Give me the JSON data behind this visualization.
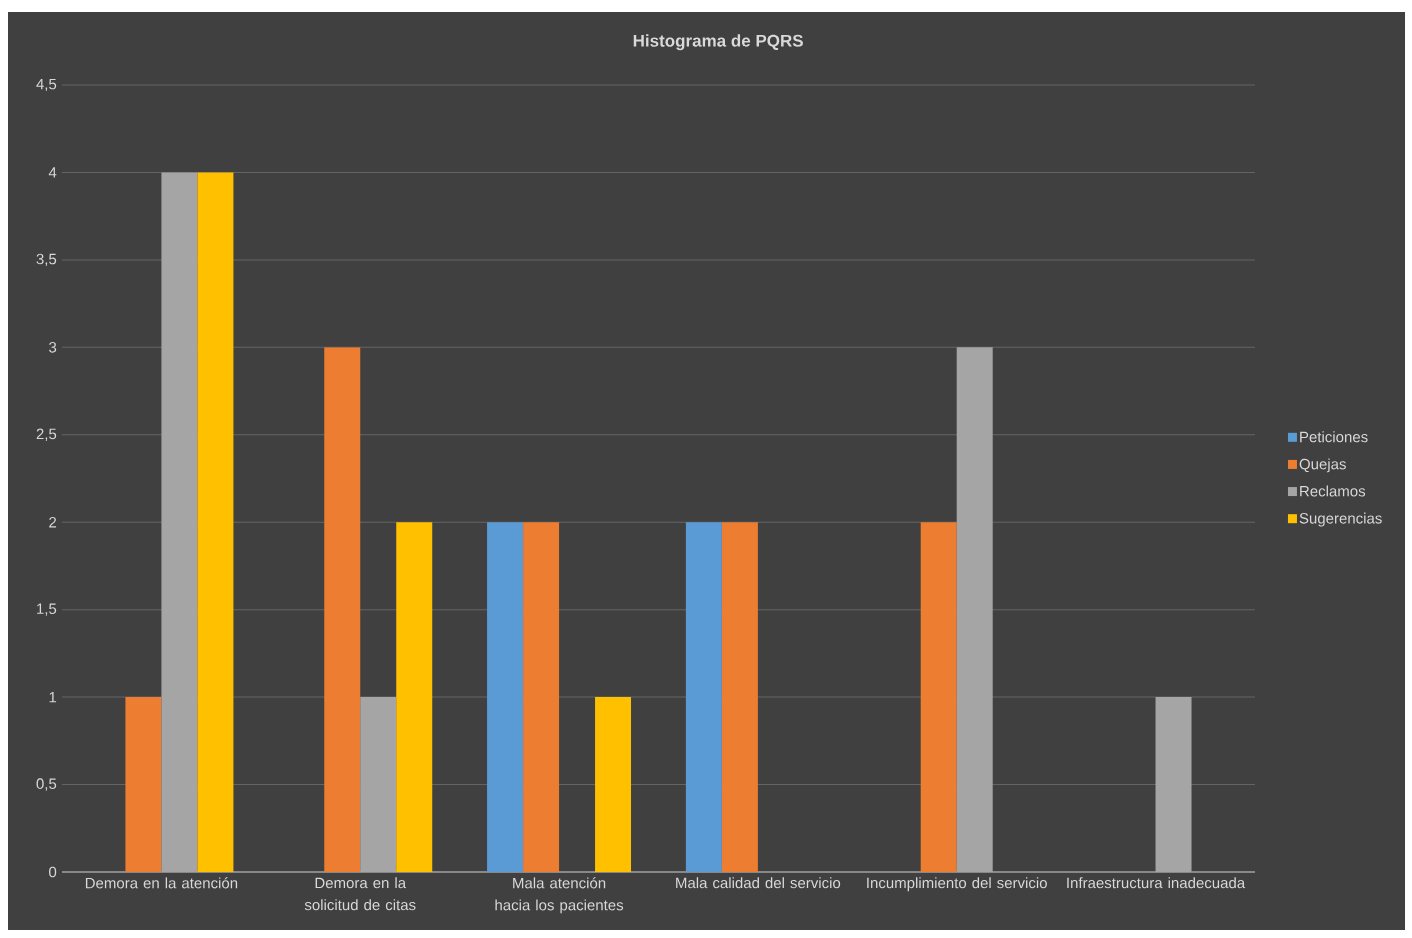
{
  "chart_data": {
    "type": "bar",
    "title": "Histograma de PQRS",
    "categories": [
      "Demora en la atención",
      "Demora en la solicitud de citas",
      "Mala atención hacia los pacientes",
      "Mala calidad del servicio",
      "Incumplimiento del servicio",
      "Infraestructura inadecuada"
    ],
    "series": [
      {
        "name": "Peticiones",
        "color": "#5b9bd5",
        "values": [
          null,
          null,
          2,
          2,
          null,
          null
        ]
      },
      {
        "name": "Quejas",
        "color": "#ed7d31",
        "values": [
          1,
          3,
          2,
          2,
          2,
          null
        ]
      },
      {
        "name": "Reclamos",
        "color": "#a5a5a5",
        "values": [
          4,
          1,
          null,
          null,
          3,
          1
        ]
      },
      {
        "name": "Sugerencias",
        "color": "#ffc000",
        "values": [
          4,
          2,
          1,
          null,
          null,
          null
        ]
      }
    ],
    "ylim": [
      0,
      4.5
    ],
    "yticks": [
      0,
      {
        "value": 0.5,
        "label": "0,5"
      },
      1,
      {
        "value": 1.5,
        "label": "1,5"
      },
      2,
      {
        "value": 2.5,
        "label": "2,5"
      },
      3,
      {
        "value": 3.5,
        "label": "3,5"
      },
      4,
      {
        "value": 4.5,
        "label": "4,5"
      }
    ],
    "grid": "y",
    "legend": "right"
  }
}
